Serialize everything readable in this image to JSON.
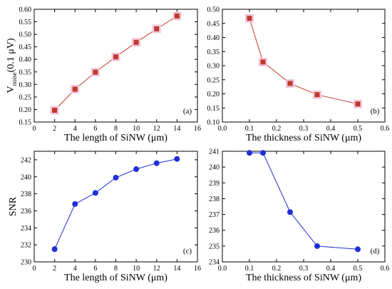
{
  "chart_data": [
    {
      "type": "line",
      "panel_label": "(a)",
      "xlabel": "The length of SiNW (μm)",
      "ylabel_main": "V",
      "ylabel_sub": "noise",
      "ylabel_unit": "(0.1 μV)",
      "xlim": [
        0,
        16
      ],
      "ylim": [
        0.15,
        0.6
      ],
      "xticks": [
        "0",
        "2",
        "4",
        "6",
        "8",
        "10",
        "12",
        "14",
        "16"
      ],
      "yticks": [
        "0.15",
        "0.20",
        "0.25",
        "0.30",
        "0.35",
        "0.40",
        "0.45",
        "0.50",
        "0.55",
        "0.60"
      ],
      "x": [
        2,
        4,
        6,
        8,
        10,
        12,
        14
      ],
      "y": [
        0.197,
        0.281,
        0.349,
        0.41,
        0.468,
        0.522,
        0.573
      ],
      "marker": "square",
      "color": "#c0392b",
      "line_color": "#c0392b",
      "halo_color": "#f2c6dc"
    },
    {
      "type": "line",
      "panel_label": "(b)",
      "xlabel": "The thickness of SiNW (μm)",
      "xlim": [
        0,
        0.6
      ],
      "ylim": [
        0.1,
        0.5
      ],
      "xticks": [
        "0.0",
        "0.1",
        "0.2",
        "0.3",
        "0.4",
        "0.5",
        "0.6"
      ],
      "yticks": [
        "0.10",
        "0.15",
        "0.20",
        "0.25",
        "0.30",
        "0.35",
        "0.40",
        "0.45",
        "0.50"
      ],
      "x": [
        0.1,
        0.15,
        0.25,
        0.35,
        0.5
      ],
      "y": [
        0.468,
        0.313,
        0.237,
        0.197,
        0.164
      ],
      "marker": "square",
      "color": "#c0392b",
      "line_color": "#c0392b",
      "halo_color": "#f2c6dc"
    },
    {
      "type": "line",
      "panel_label": "(c)",
      "xlabel": "The length of SiNW (μm)",
      "ylabel": "SNR",
      "xlim": [
        0,
        16
      ],
      "ylim": [
        230,
        243
      ],
      "xticks": [
        "0",
        "2",
        "4",
        "6",
        "8",
        "10",
        "12",
        "14",
        "16"
      ],
      "yticks": [
        "230",
        "232",
        "234",
        "236",
        "238",
        "240",
        "242"
      ],
      "x": [
        2,
        4,
        6,
        8,
        10,
        12,
        14
      ],
      "y": [
        231.5,
        236.8,
        238.1,
        239.9,
        240.9,
        241.6,
        242.1
      ],
      "marker": "circle",
      "color": "#1f2fd6",
      "line_color": "#1f2fd6"
    },
    {
      "type": "line",
      "panel_label": "(d)",
      "xlabel": "The thickness of SiNW (μm)",
      "xlim": [
        0,
        0.6
      ],
      "ylim": [
        234,
        241
      ],
      "xticks": [
        "0.0",
        "0.1",
        "0.2",
        "0.3",
        "0.4",
        "0.5",
        "0.6"
      ],
      "yticks": [
        "234",
        "235",
        "236",
        "237",
        "238",
        "239",
        "240",
        "241"
      ],
      "x": [
        0.1,
        0.15,
        0.25,
        0.35,
        0.5
      ],
      "y": [
        240.9,
        240.9,
        237.15,
        235.0,
        234.8
      ],
      "marker": "circle",
      "color": "#1f2fd6",
      "line_color": "#1f2fd6"
    }
  ]
}
